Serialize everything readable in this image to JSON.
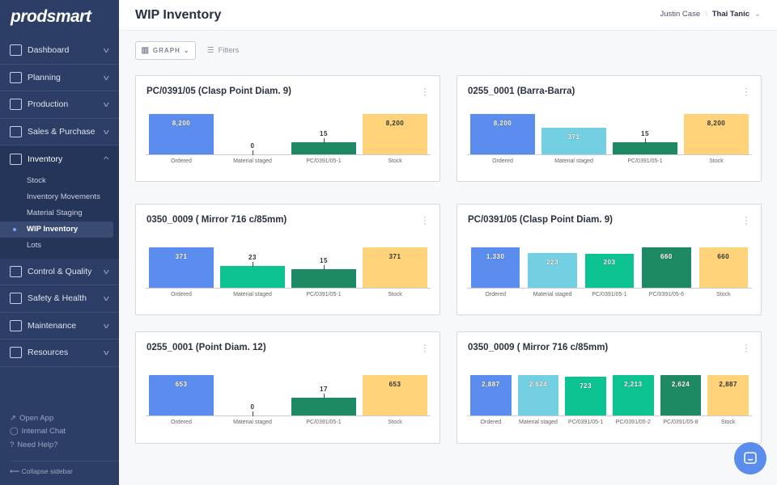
{
  "brand": "prodsmart",
  "sidebar": {
    "items": [
      {
        "label": "Dashboard",
        "icon": "dashboard-icon"
      },
      {
        "label": "Planning",
        "icon": "calendar-icon"
      },
      {
        "label": "Production",
        "icon": "gauge-icon"
      },
      {
        "label": "Sales & Purchase",
        "icon": "box-icon"
      },
      {
        "label": "Inventory",
        "icon": "dolly-icon",
        "open": true,
        "children": [
          "Stock",
          "Inventory Movements",
          "Material Staging",
          "WIP Inventory",
          "Lots"
        ],
        "active": "WIP Inventory"
      },
      {
        "label": "Control & Quality",
        "icon": "clipboard-icon"
      },
      {
        "label": "Safety & Health",
        "icon": "shield-icon"
      },
      {
        "label": "Maintenance",
        "icon": "tools-icon"
      },
      {
        "label": "Resources",
        "icon": "folder-icon"
      }
    ],
    "footer": [
      "Open App",
      "Internal Chat",
      "Need Help?"
    ],
    "collapse": "Collapse sidebar"
  },
  "header": {
    "title": "WIP Inventory",
    "user": "Justin Case",
    "company": "Thai Tanic"
  },
  "toolbar": {
    "view": "GRAPH",
    "filters": "Filters"
  },
  "colors": {
    "ordered": "#5b8def",
    "staged": "#72d0e2",
    "wip_light": "#0dc392",
    "wip_dark": "#1d8a63",
    "stock": "#fed37a"
  },
  "chart_data": [
    {
      "type": "bar",
      "title": "PC/0391/05 (Clasp Point Diam. 9)",
      "categories": [
        "Ordered",
        "Material staged",
        "PC/0391/05-1",
        "Stock"
      ],
      "values": [
        8200,
        0,
        15,
        8200
      ],
      "labels": [
        "8,200",
        "0",
        "15",
        "8,200"
      ],
      "colors": [
        "#5b8def",
        "#72d0e2",
        "#1d8a63",
        "#fed37a"
      ]
    },
    {
      "type": "bar",
      "title": "0255_0001 (Barra-Barra)",
      "categories": [
        "Ordered",
        "Material staged",
        "PC/0391/05-1",
        "Stock"
      ],
      "values": [
        8200,
        371,
        15,
        8200
      ],
      "labels": [
        "8,200",
        "371",
        "15",
        "8,200"
      ],
      "colors": [
        "#5b8def",
        "#72d0e2",
        "#1d8a63",
        "#fed37a"
      ]
    },
    {
      "type": "bar",
      "title": "0350_0009 ( Mirror 716 c/85mm)",
      "categories": [
        "Ordered",
        "Material staged",
        "PC/0391/05-1",
        "Stock"
      ],
      "values": [
        371,
        23,
        15,
        371
      ],
      "labels": [
        "371",
        "23",
        "15",
        "371"
      ],
      "colors": [
        "#5b8def",
        "#0dc392",
        "#1d8a63",
        "#fed37a"
      ]
    },
    {
      "type": "bar",
      "title": "PC/0391/05 (Clasp Point Diam. 9)",
      "categories": [
        "Ordered",
        "Material staged",
        "PC/0391/05-1",
        "PC/0391/05-6",
        "Stock"
      ],
      "values": [
        1330,
        223,
        203,
        660,
        660
      ],
      "labels": [
        "1,330",
        "223",
        "203",
        "660",
        "660"
      ],
      "colors": [
        "#5b8def",
        "#72d0e2",
        "#0dc392",
        "#1d8a63",
        "#fed37a"
      ]
    },
    {
      "type": "bar",
      "title": "0255_0001 (Point Diam. 12)",
      "categories": [
        "Ordered",
        "Material staged",
        "PC/0391/05-1",
        "Stock"
      ],
      "values": [
        653,
        0,
        17,
        653
      ],
      "labels": [
        "653",
        "0",
        "17",
        "653"
      ],
      "colors": [
        "#5b8def",
        "#72d0e2",
        "#1d8a63",
        "#fed37a"
      ]
    },
    {
      "type": "bar",
      "title": "0350_0009 ( Mirror 716 c/85mm)",
      "categories": [
        "Ordered",
        "Material staged",
        "PC/0391/05-1",
        "PC/0391/05-2",
        "PC/0391/05-8",
        "Stock"
      ],
      "values": [
        2887,
        2624,
        723,
        2213,
        2624,
        2887
      ],
      "labels": [
        "2,887",
        "2,624",
        "723",
        "2,213",
        "2,624",
        "2,887"
      ],
      "colors": [
        "#5b8def",
        "#72d0e2",
        "#0dc392",
        "#0dc392",
        "#1d8a63",
        "#fed37a"
      ]
    }
  ]
}
